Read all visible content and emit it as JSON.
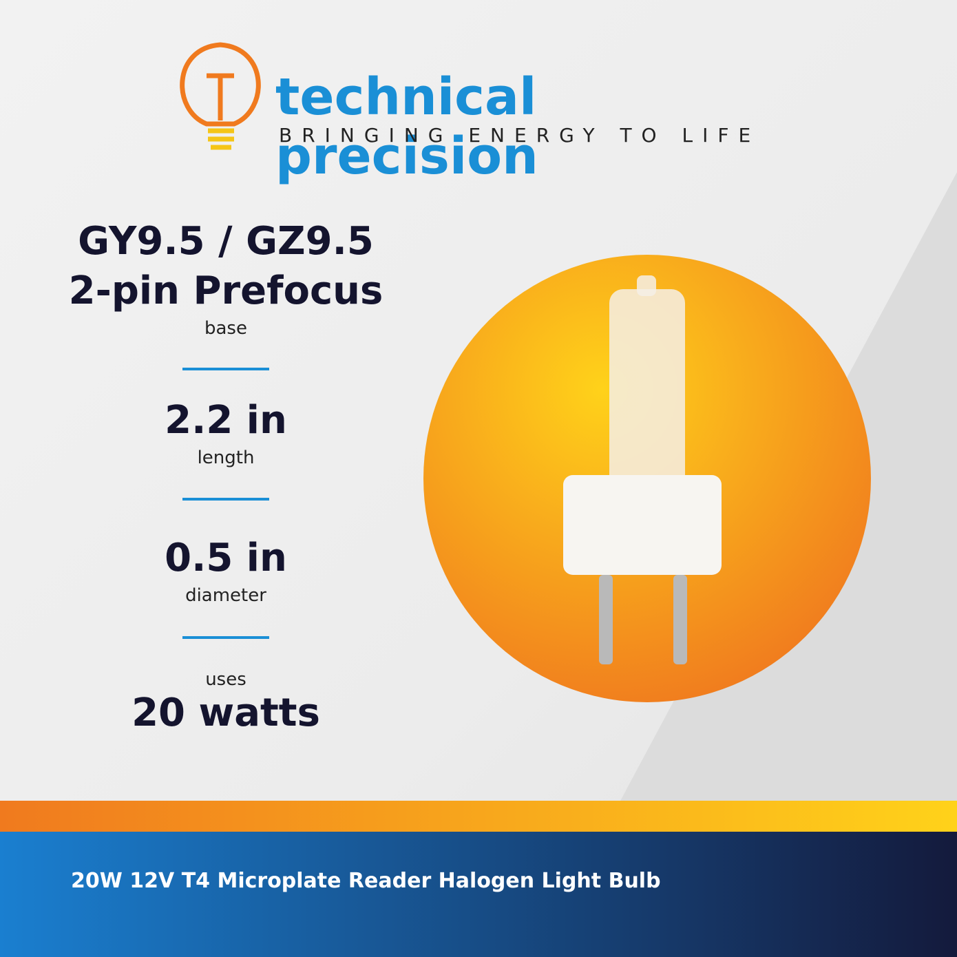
{
  "brand": {
    "name": "technical precision",
    "tagline": "BRINGING ENERGY TO LIFE"
  },
  "specs": [
    {
      "value": "GY9.5 / GZ9.5",
      "value2": "2-pin Prefocus",
      "label": "base"
    },
    {
      "value": "2.2 in",
      "label": "length"
    },
    {
      "value": "0.5 in",
      "label": "diameter"
    },
    {
      "pre": "uses",
      "value": "20 watts"
    }
  ],
  "footer": {
    "title": "20W 12V T4 Microplate Reader Halogen Light Bulb"
  }
}
